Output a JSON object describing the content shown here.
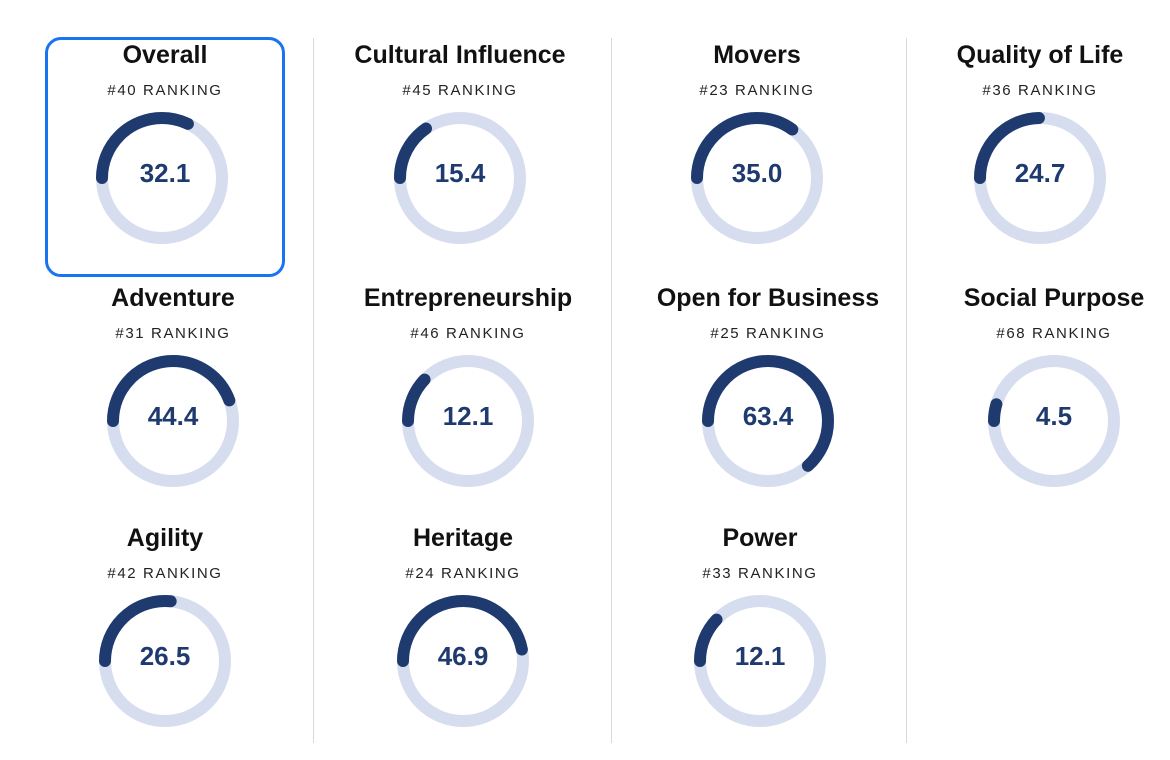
{
  "colors": {
    "track": "#d6ddef",
    "progress": "#1e3a6e",
    "selected_border": "#1a73f0",
    "value_text": "#1e3a6e"
  },
  "scale_max": 100,
  "metrics": [
    {
      "title": "Overall",
      "ranking": "#40 RANKING",
      "value": "32.1",
      "selected": true
    },
    {
      "title": "Cultural Influence",
      "ranking": "#45 RANKING",
      "value": "15.4"
    },
    {
      "title": "Movers",
      "ranking": "#23 RANKING",
      "value": "35.0"
    },
    {
      "title": "Quality of Life",
      "ranking": "#36 RANKING",
      "value": "24.7"
    },
    {
      "title": "Adventure",
      "ranking": "#31 RANKING",
      "value": "44.4"
    },
    {
      "title": "Entrepreneurship",
      "ranking": "#46 RANKING",
      "value": "12.1"
    },
    {
      "title": "Open for Business",
      "ranking": "#25 RANKING",
      "value": "63.4"
    },
    {
      "title": "Social Purpose",
      "ranking": "#68 RANKING",
      "value": "4.5"
    },
    {
      "title": "Agility",
      "ranking": "#42 RANKING",
      "value": "26.5"
    },
    {
      "title": "Heritage",
      "ranking": "#24 RANKING",
      "value": "46.9"
    },
    {
      "title": "Power",
      "ranking": "#33 RANKING",
      "value": "12.1"
    }
  ]
}
